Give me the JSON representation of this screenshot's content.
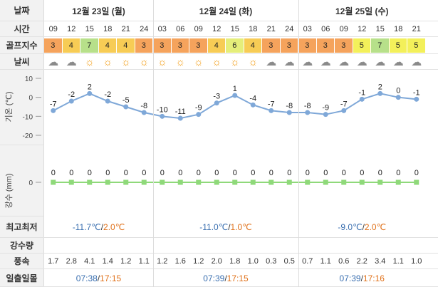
{
  "labels": {
    "date": "날짜",
    "time": "시간",
    "golf": "골프지수",
    "weather": "날씨",
    "temp_axis": "기온 (℃)",
    "rain_axis": "강수 (mm)",
    "minmax": "최고최저",
    "precip": "강수량",
    "wind": "풍속",
    "sun": "일출일몰"
  },
  "days": [
    {
      "label": "12월 23일 (월)",
      "min": "-11.7℃",
      "max": "2.0℃",
      "sunrise": "07:38",
      "sunset": "17:15"
    },
    {
      "label": "12월 24일 (화)",
      "min": "-11.0℃",
      "max": "1.0℃",
      "sunrise": "07:39",
      "sunset": "17:15"
    },
    {
      "label": "12월 25일 (수)",
      "min": "-9.0℃",
      "max": "2.0℃",
      "sunrise": "07:39",
      "sunset": "17:16"
    }
  ],
  "hours": [
    "09",
    "12",
    "15",
    "18",
    "21",
    "24",
    "03",
    "06",
    "09",
    "12",
    "15",
    "18",
    "21",
    "24",
    "03",
    "06",
    "09",
    "12",
    "15",
    "18",
    "21"
  ],
  "golf": [
    "3",
    "4",
    "7",
    "4",
    "4",
    "3",
    "3",
    "3",
    "3",
    "4",
    "6",
    "4",
    "3",
    "3",
    "3",
    "3",
    "3",
    "5",
    "7",
    "5",
    "5"
  ],
  "golf_colors": {
    "3": "#f5a35c",
    "4": "#f7cc55",
    "5": "#f3f05a",
    "6": "#e5ee7a",
    "7": "#b7e08a"
  },
  "weather": [
    "cloudy",
    "cloudy",
    "sunny",
    "sunny",
    "sunny",
    "sunny",
    "sunny",
    "sunny",
    "sunny",
    "sunny",
    "sunny",
    "sunny",
    "cloudy",
    "cloudy",
    "cloudy",
    "cloudy",
    "cloudy",
    "cloudy",
    "cloudy",
    "cloudy",
    "cloudy"
  ],
  "wind": [
    "1.7",
    "2.8",
    "4.1",
    "1.4",
    "1.2",
    "1.1",
    "1.2",
    "1.6",
    "1.2",
    "2.0",
    "1.8",
    "1.0",
    "0.3",
    "0.5",
    "0.7",
    "1.1",
    "0.6",
    "2.2",
    "3.4",
    "1.1",
    "1.0"
  ],
  "chart_data": [
    {
      "type": "line",
      "x": [
        "09",
        "12",
        "15",
        "18",
        "21",
        "24",
        "03",
        "06",
        "09",
        "12",
        "15",
        "18",
        "21",
        "24",
        "03",
        "06",
        "09",
        "12",
        "15",
        "18",
        "21"
      ],
      "values": [
        -7,
        -2,
        2,
        -2,
        -5,
        -8,
        -10,
        -11,
        -9,
        -3,
        1,
        -4,
        -7,
        -8,
        -8,
        -9,
        -7,
        -1,
        2,
        0,
        -1
      ],
      "ylabel": "기온 (℃)",
      "ylim": [
        -20,
        10
      ],
      "yticks": [
        10,
        0,
        -10,
        -20
      ],
      "color": "#7fa8d8"
    },
    {
      "type": "line",
      "x": [
        "09",
        "12",
        "15",
        "18",
        "21",
        "24",
        "03",
        "06",
        "09",
        "12",
        "15",
        "18",
        "21",
        "24",
        "03",
        "06",
        "09",
        "12",
        "15",
        "18",
        "21"
      ],
      "values": [
        0,
        0,
        0,
        0,
        0,
        0,
        0,
        0,
        0,
        0,
        0,
        0,
        0,
        0,
        0,
        0,
        0,
        0,
        0,
        0,
        0
      ],
      "ylabel": "강수 (mm)",
      "yticks": [
        0
      ],
      "color": "#8fd97a"
    }
  ]
}
